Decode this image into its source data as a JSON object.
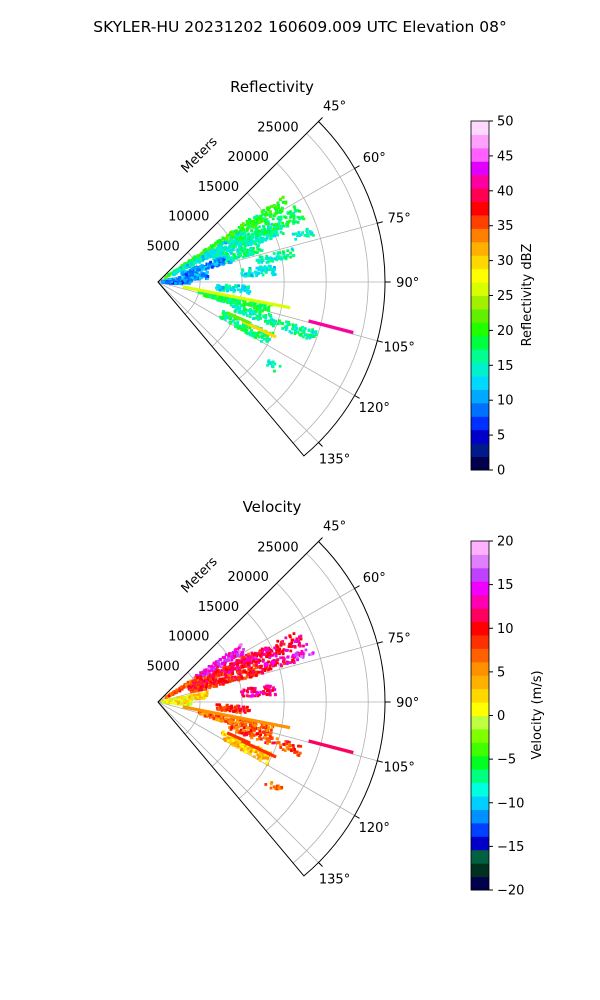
{
  "figure": {
    "suptitle": "SKYLER-HU  20231202  160609.009 UTC Elevation 08°"
  },
  "chart_data": [
    {
      "type": "polar-sector",
      "title": "Reflectivity",
      "radial_label": "Meters",
      "radial_ticks": [
        "5000",
        "10000",
        "15000",
        "20000",
        "25000"
      ],
      "radial_values": [
        5000,
        10000,
        15000,
        20000,
        25000
      ],
      "rmax": 27000,
      "angle_range_deg": [
        45,
        140
      ],
      "angle_ticks": [
        "45°",
        "60°",
        "75°",
        "90°",
        "105°",
        "120°",
        "135°"
      ],
      "angle_values": [
        45,
        60,
        75,
        90,
        105,
        120,
        135
      ],
      "grid": true,
      "colorbar": {
        "label": "Reflectivity dBZ",
        "min": 0,
        "max": 50,
        "tick_values": [
          0,
          5,
          10,
          15,
          20,
          25,
          30,
          35,
          40,
          45,
          50
        ],
        "tick_labels": [
          "0",
          "5",
          "10",
          "15",
          "20",
          "25",
          "30",
          "35",
          "40",
          "45",
          "50"
        ],
        "colors": [
          "#00004c",
          "#001a8c",
          "#0000c8",
          "#0030ff",
          "#0070ff",
          "#00a8ff",
          "#00d8ff",
          "#00f0d0",
          "#00ff90",
          "#00ff40",
          "#20ff00",
          "#60f000",
          "#a0f000",
          "#d8ff00",
          "#ffff00",
          "#ffd800",
          "#ffb000",
          "#ff8000",
          "#ff4000",
          "#ff0000",
          "#ff0050",
          "#ff00a0",
          "#e000ff",
          "#ff60ff",
          "#ffa0ff",
          "#ffd8ff"
        ]
      },
      "echoes": [
        {
          "az": 58,
          "r1": 1000,
          "r2": 18000,
          "spread": 2.5,
          "density": 0.85,
          "value": 20
        },
        {
          "az": 62,
          "r1": 2000,
          "r2": 12000,
          "spread": 3,
          "density": 0.8,
          "value": 14
        },
        {
          "az": 66,
          "r1": 7000,
          "r2": 16000,
          "spread": 3,
          "density": 0.8,
          "value": 15
        },
        {
          "az": 64,
          "r1": 10000,
          "r2": 19000,
          "spread": 3,
          "density": 0.6,
          "value": 17
        },
        {
          "az": 72,
          "r1": 3000,
          "r2": 9000,
          "spread": 3,
          "density": 0.85,
          "value": 10
        },
        {
          "az": 72,
          "r1": 8000,
          "r2": 13000,
          "spread": 2,
          "density": 0.8,
          "value": 16
        },
        {
          "az": 78,
          "r1": 12000,
          "r2": 16500,
          "spread": 2,
          "density": 0.7,
          "value": 16
        },
        {
          "az": 84,
          "r1": 10000,
          "r2": 14000,
          "spread": 2.5,
          "density": 0.7,
          "value": 14
        },
        {
          "az": 95,
          "r1": 7000,
          "r2": 11000,
          "spread": 2.5,
          "density": 0.8,
          "value": 14
        },
        {
          "az": 104,
          "r1": 5000,
          "r2": 14000,
          "spread": 3,
          "density": 0.75,
          "value": 18
        },
        {
          "az": 109,
          "r1": 9000,
          "r2": 20000,
          "spread": 2,
          "density": 0.7,
          "value": 16
        },
        {
          "az": 117,
          "r1": 8500,
          "r2": 15000,
          "spread": 3,
          "density": 0.8,
          "value": 17
        },
        {
          "az": 72,
          "r1": 17000,
          "r2": 19500,
          "spread": 1.5,
          "density": 0.7,
          "value": 15
        },
        {
          "az": 126,
          "r1": 16000,
          "r2": 18000,
          "spread": 1.5,
          "density": 0.6,
          "value": 16
        },
        {
          "az": 82,
          "r1": 500,
          "r2": 6000,
          "spread": 4,
          "density": 0.6,
          "value": 10
        },
        {
          "az": 92,
          "r1": 500,
          "r2": 4000,
          "spread": 4,
          "density": 0.5,
          "value": 8
        }
      ],
      "streaks": [
        {
          "az": 101,
          "r1": 3000,
          "r2": 16000,
          "value": 26
        },
        {
          "az": 104.5,
          "r1": 18500,
          "r2": 24000,
          "value": 42
        },
        {
          "az": 115,
          "r1": 11000,
          "r2": 15500,
          "value": 30
        },
        {
          "az": 114,
          "r1": 9000,
          "r2": 12000,
          "value": 22
        }
      ]
    },
    {
      "type": "polar-sector",
      "title": "Velocity",
      "radial_label": "Meters",
      "radial_ticks": [
        "5000",
        "10000",
        "15000",
        "20000",
        "25000"
      ],
      "radial_values": [
        5000,
        10000,
        15000,
        20000,
        25000
      ],
      "rmax": 27000,
      "angle_range_deg": [
        45,
        140
      ],
      "angle_ticks": [
        "45°",
        "60°",
        "75°",
        "90°",
        "105°",
        "120°",
        "135°"
      ],
      "angle_values": [
        45,
        60,
        75,
        90,
        105,
        120,
        135
      ],
      "grid": true,
      "colorbar": {
        "label": "Velocity (m/s)",
        "min": -20,
        "max": 20,
        "tick_values": [
          -20,
          -15,
          -10,
          -5,
          0,
          5,
          10,
          15,
          20
        ],
        "tick_labels": [
          "−20",
          "−15",
          "−10",
          "−5",
          "0",
          "5",
          "10",
          "15",
          "20"
        ],
        "colors": [
          "#00004c",
          "#003020",
          "#006040",
          "#0000c8",
          "#0040ff",
          "#0090ff",
          "#00d0ff",
          "#00ffe0",
          "#00ff80",
          "#00ff20",
          "#40ff00",
          "#80ff00",
          "#c0ff40",
          "#ffff00",
          "#ffd800",
          "#ffb000",
          "#ff9000",
          "#ff6000",
          "#ff3000",
          "#ff0000",
          "#ff0060",
          "#ff00b0",
          "#f000ff",
          "#c040ff",
          "#e080ff",
          "#ffb0ff"
        ]
      },
      "echoes": [
        {
          "az": 58,
          "r1": 5000,
          "r2": 12000,
          "spread": 3,
          "density": 0.85,
          "value": 15
        },
        {
          "az": 60,
          "r1": 1000,
          "r2": 6000,
          "spread": 3,
          "density": 0.8,
          "value": 7
        },
        {
          "az": 65,
          "r1": 4000,
          "r2": 13000,
          "spread": 3,
          "density": 0.85,
          "value": 10
        },
        {
          "az": 66,
          "r1": 9000,
          "r2": 19000,
          "spread": 3,
          "density": 0.6,
          "value": 12
        },
        {
          "az": 72,
          "r1": 4000,
          "r2": 13000,
          "spread": 3,
          "density": 0.85,
          "value": 9
        },
        {
          "az": 72,
          "r1": 13000,
          "r2": 17000,
          "spread": 2,
          "density": 0.8,
          "value": 12
        },
        {
          "az": 84,
          "r1": 10000,
          "r2": 14000,
          "spread": 2.5,
          "density": 0.7,
          "value": 12
        },
        {
          "az": 95,
          "r1": 7000,
          "r2": 11000,
          "spread": 2.5,
          "density": 0.8,
          "value": 9
        },
        {
          "az": 104,
          "r1": 5000,
          "r2": 14000,
          "spread": 3,
          "density": 0.75,
          "value": 7
        },
        {
          "az": 109,
          "r1": 9000,
          "r2": 18000,
          "spread": 2,
          "density": 0.7,
          "value": 8
        },
        {
          "az": 117,
          "r1": 8500,
          "r2": 15000,
          "spread": 3,
          "density": 0.8,
          "value": 3
        },
        {
          "az": 72,
          "r1": 17000,
          "r2": 19500,
          "spread": 1.5,
          "density": 0.7,
          "value": 15
        },
        {
          "az": 126,
          "r1": 16000,
          "r2": 18000,
          "spread": 1.5,
          "density": 0.6,
          "value": 5
        },
        {
          "az": 82,
          "r1": 500,
          "r2": 6000,
          "spread": 4,
          "density": 0.6,
          "value": 2
        },
        {
          "az": 92,
          "r1": 500,
          "r2": 4000,
          "spread": 4,
          "density": 0.5,
          "value": 1
        }
      ],
      "streaks": [
        {
          "az": 101,
          "r1": 3000,
          "r2": 16000,
          "value": 6
        },
        {
          "az": 104.5,
          "r1": 18500,
          "r2": 24000,
          "value": 11
        },
        {
          "az": 115,
          "r1": 11000,
          "r2": 15500,
          "value": 9
        },
        {
          "az": 114,
          "r1": 9000,
          "r2": 12000,
          "value": 8
        }
      ]
    }
  ]
}
